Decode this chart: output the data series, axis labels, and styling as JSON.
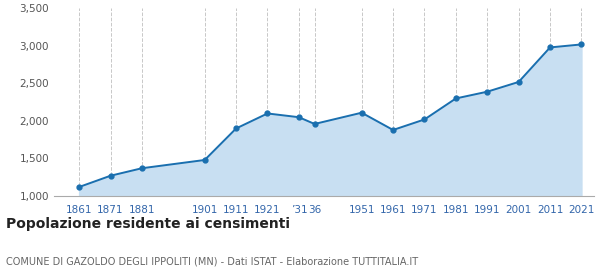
{
  "years": [
    1861,
    1871,
    1881,
    1901,
    1911,
    1921,
    1931,
    1936,
    1951,
    1961,
    1971,
    1981,
    1991,
    2001,
    2011,
    2021
  ],
  "population": [
    1120,
    1270,
    1370,
    1480,
    1900,
    2100,
    2050,
    1960,
    2110,
    1880,
    2020,
    2300,
    2390,
    2520,
    2980,
    3020
  ],
  "line_color": "#1a6faf",
  "fill_color": "#c8dff2",
  "marker_color": "#1a6faf",
  "bg_color": "#ffffff",
  "grid_color": "#c8c8c8",
  "title": "Popolazione residente ai censimenti",
  "subtitle": "COMUNE DI GAZOLDO DEGLI IPPOLITI (MN) - Dati ISTAT - Elaborazione TUTTITALIA.IT",
  "ylim": [
    1000,
    3500
  ],
  "yticks": [
    1000,
    1500,
    2000,
    2500,
    3000,
    3500
  ],
  "title_fontsize": 10,
  "subtitle_fontsize": 7,
  "tick_fontsize": 7.5,
  "xlim_left": 1853,
  "xlim_right": 2025
}
